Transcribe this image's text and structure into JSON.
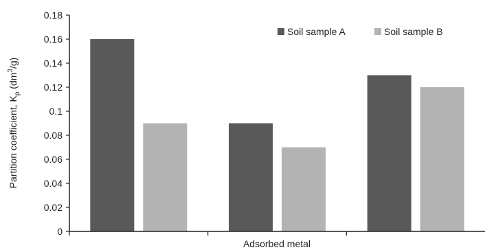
{
  "chart_data": {
    "type": "bar",
    "title": "",
    "xlabel": "Adsorbed metal",
    "ylabel_main": "Partition coefficient, K",
    "ylabel_sub": "p",
    "ylabel_unit_pre": " (dm",
    "ylabel_sup": "3",
    "ylabel_unit_post": "/g)",
    "ylim": [
      0,
      0.18
    ],
    "yticks": [
      "0",
      "0.02",
      "0.04",
      "0.06",
      "0.08",
      "0.1",
      "0.12",
      "0.14",
      "0.16",
      "0.18"
    ],
    "categories": [
      "",
      "",
      ""
    ],
    "series": [
      {
        "name": "Soil sample A",
        "color": "#595959",
        "values": [
          0.16,
          0.09,
          0.13
        ]
      },
      {
        "name": "Soil sample B",
        "color": "#b3b3b3",
        "values": [
          0.09,
          0.07,
          0.12
        ]
      }
    ],
    "legend_position": "top-right",
    "grid": false
  }
}
